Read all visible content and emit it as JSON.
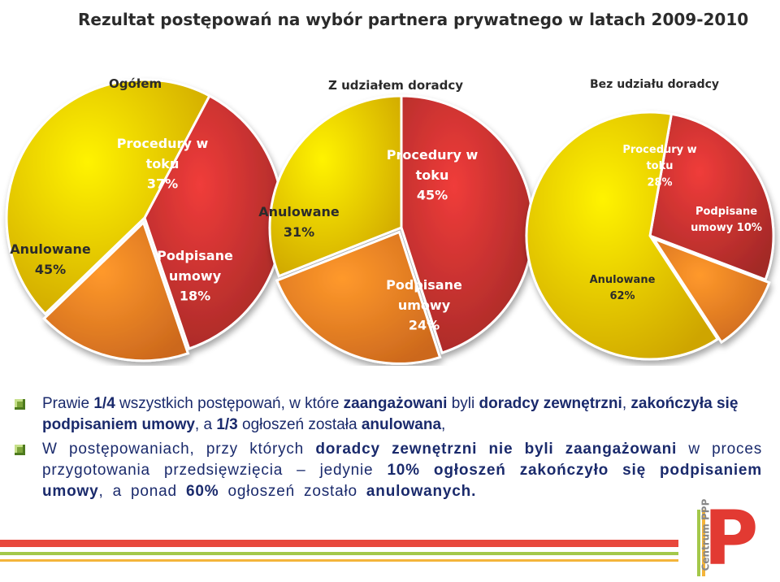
{
  "title": "Rezultat postępowań na wybór partnera prywatnego w latach 2009-2010",
  "chart_data": [
    {
      "type": "pie",
      "title": "Ogółem",
      "slices": [
        {
          "label": "Procedury w toku",
          "value": 37,
          "color": "#c0302e"
        },
        {
          "label": "Podpisane umowy",
          "value": 18,
          "color": "#f07a22"
        },
        {
          "label": "Anulowane",
          "value": 45,
          "color": "#f2c200"
        }
      ]
    },
    {
      "type": "pie",
      "title": "Z udziałem doradcy",
      "slices": [
        {
          "label": "Procedury w toku",
          "value": 45,
          "color": "#c0302e"
        },
        {
          "label": "Podpisane umowy",
          "value": 24,
          "color": "#f07a22"
        },
        {
          "label": "Anulowane",
          "value": 31,
          "color": "#f2c200"
        }
      ]
    },
    {
      "type": "pie",
      "title": "Bez udziału doradcy",
      "slices": [
        {
          "label": "Procedury w toku",
          "value": 28,
          "color": "#c0302e"
        },
        {
          "label": "Podpisane umowy",
          "value": 10,
          "color": "#f07a22"
        },
        {
          "label": "Anulowane",
          "value": 62,
          "color": "#f2c200"
        }
      ]
    }
  ],
  "bullets": {
    "p1": [
      {
        "t": "Prawie ",
        "b": false
      },
      {
        "t": "1/4",
        "b": true
      },
      {
        "t": " wszystkich postępowań, w które ",
        "b": false
      },
      {
        "t": "zaangażowani",
        "b": true
      },
      {
        "t": " byli ",
        "b": false
      },
      {
        "t": "doradcy zewnętrzni",
        "b": true
      },
      {
        "t": ", ",
        "b": false
      },
      {
        "t": "zakończyła się podpisaniem umowy",
        "b": true
      },
      {
        "t": ", a ",
        "b": false
      },
      {
        "t": "1/3",
        "b": true
      },
      {
        "t": " ogłoszeń została ",
        "b": false
      },
      {
        "t": "anulowana",
        "b": true
      },
      {
        "t": ",",
        "b": false
      }
    ],
    "p2": [
      {
        "t": "W postępowaniach, przy których ",
        "b": false
      },
      {
        "t": "doradcy zewnętrzni nie byli zaangażowani",
        "b": true
      },
      {
        "t": " w proces przygotowania przedsięwzięcia – jedynie ",
        "b": false
      },
      {
        "t": "10% ogłoszeń zakończyło się podpisaniem umowy",
        "b": true
      },
      {
        "t": ", a ponad ",
        "b": false
      },
      {
        "t": "60%",
        "b": true
      },
      {
        "t": " ogłoszeń zostało ",
        "b": false
      },
      {
        "t": "anulowanych.",
        "b": true
      }
    ]
  },
  "logo": {
    "text": "Centrum PPP",
    "letter": "P"
  }
}
